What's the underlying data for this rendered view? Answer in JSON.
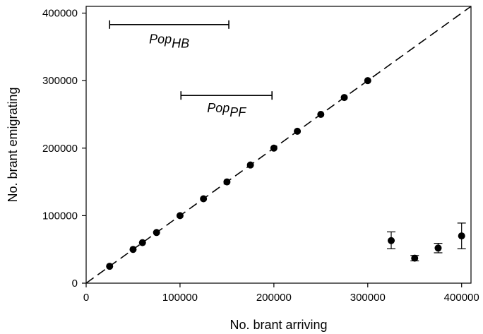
{
  "chart_data": {
    "type": "scatter",
    "xlabel": "No. brant arriving",
    "ylabel": "No. brant emigrating",
    "xlim": [
      0,
      410000
    ],
    "ylim": [
      0,
      410000
    ],
    "x_ticks": [
      0,
      100000,
      200000,
      300000,
      400000
    ],
    "y_ticks": [
      0,
      100000,
      200000,
      300000,
      400000
    ],
    "x_tick_labels": [
      "0",
      "100000",
      "200000",
      "300000",
      "400000"
    ],
    "y_tick_labels": [
      "0",
      "100000",
      "200000",
      "300000",
      "400000"
    ],
    "grid": false,
    "reference_line": {
      "style": "dashed",
      "from": [
        0,
        0
      ],
      "to": [
        410000,
        410000
      ]
    },
    "points": [
      {
        "x": 25000,
        "y": 25000
      },
      {
        "x": 50000,
        "y": 50000
      },
      {
        "x": 60000,
        "y": 60000
      },
      {
        "x": 75000,
        "y": 75000
      },
      {
        "x": 100000,
        "y": 100000
      },
      {
        "x": 125000,
        "y": 125000
      },
      {
        "x": 150000,
        "y": 150000
      },
      {
        "x": 175000,
        "y": 175000
      },
      {
        "x": 200000,
        "y": 200000
      },
      {
        "x": 225000,
        "y": 225000
      },
      {
        "x": 250000,
        "y": 250000
      },
      {
        "x": 275000,
        "y": 275000
      },
      {
        "x": 300000,
        "y": 300000
      }
    ],
    "points_with_error": [
      {
        "x": 325000,
        "y": 63000,
        "ymin": 51000,
        "ymax": 76000
      },
      {
        "x": 350000,
        "y": 37000,
        "ymin": 33000,
        "ymax": 41000
      },
      {
        "x": 375000,
        "y": 52000,
        "ymin": 45000,
        "ymax": 59000
      },
      {
        "x": 400000,
        "y": 70000,
        "ymin": 51000,
        "ymax": 89000
      }
    ],
    "ranges": [
      {
        "label_main": "Pop",
        "label_sub": "HB",
        "x_start": 25000,
        "x_end": 152000,
        "y": 383000,
        "label_y": 355000
      },
      {
        "label_main": "Pop",
        "label_sub": "PF",
        "x_start": 101000,
        "x_end": 198000,
        "y": 278000,
        "label_y": 253000
      }
    ]
  }
}
